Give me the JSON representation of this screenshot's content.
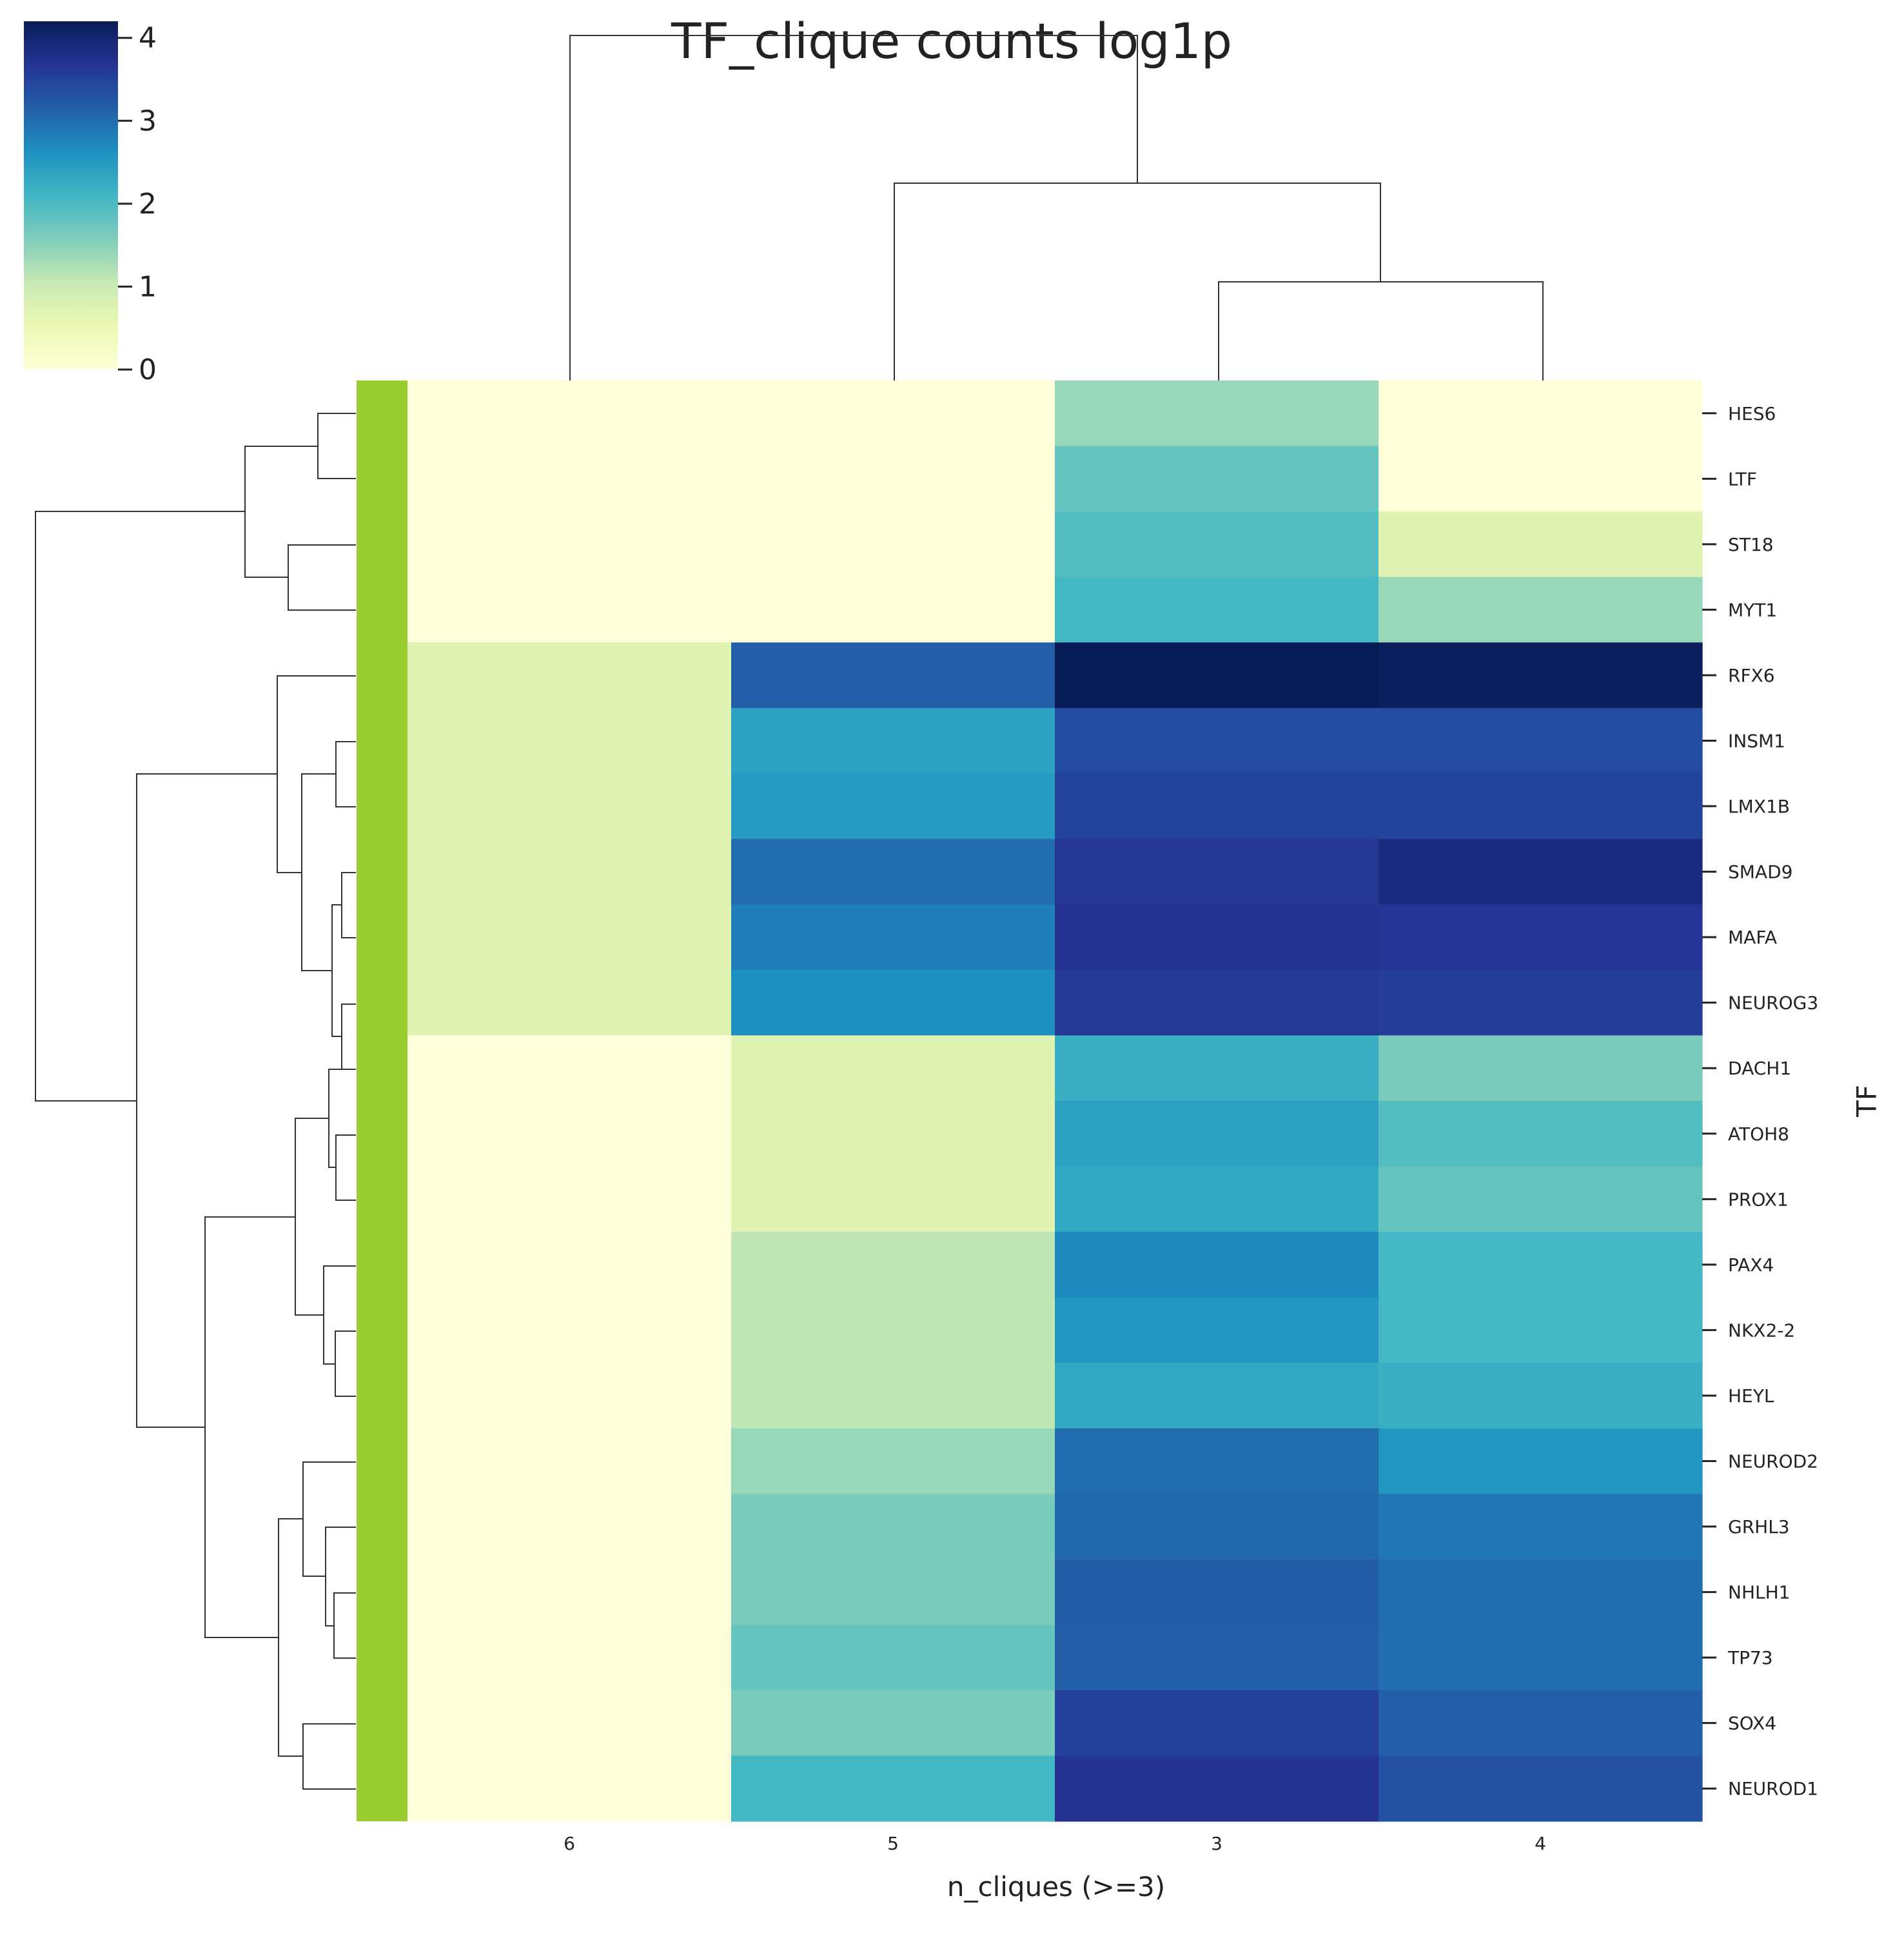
{
  "chart_data": {
    "type": "heatmap",
    "variant": "clustermap",
    "title": "TF_clique counts log1p",
    "xlabel": "n_cliques (>=3)",
    "ylabel": "TF",
    "columns": [
      "6",
      "5",
      "3",
      "4"
    ],
    "rows": [
      "HES6",
      "LTF",
      "ST18",
      "MYT1",
      "RFX6",
      "INSM1",
      "LMX1B",
      "SMAD9",
      "MAFA",
      "NEUROG3",
      "DACH1",
      "ATOH8",
      "PROX1",
      "PAX4",
      "NKX2-2",
      "HEYL",
      "NEUROD2",
      "GRHL3",
      "NHLH1",
      "TP73",
      "SOX4",
      "NEUROD1"
    ],
    "values": [
      [
        0,
        0,
        1.39,
        0
      ],
      [
        0,
        0,
        1.79,
        0
      ],
      [
        0,
        0,
        1.95,
        0.69
      ],
      [
        0,
        0,
        2.08,
        1.39
      ],
      [
        0.69,
        3.14,
        4.2,
        4.15
      ],
      [
        0.69,
        2.4,
        3.37,
        3.37
      ],
      [
        0.69,
        2.48,
        3.47,
        3.47
      ],
      [
        0.69,
        3.0,
        3.64,
        3.85
      ],
      [
        0.69,
        2.83,
        3.69,
        3.66
      ],
      [
        0.69,
        2.64,
        3.61,
        3.56
      ],
      [
        0,
        0.69,
        2.2,
        1.61
      ],
      [
        0,
        0.69,
        2.4,
        1.95
      ],
      [
        0,
        0.69,
        2.3,
        1.79
      ],
      [
        0,
        1.1,
        2.71,
        2.08
      ],
      [
        0,
        1.1,
        2.56,
        2.08
      ],
      [
        0,
        1.1,
        2.3,
        2.2
      ],
      [
        0,
        1.39,
        3.0,
        2.56
      ],
      [
        0,
        1.61,
        3.04,
        2.89
      ],
      [
        0,
        1.61,
        3.18,
        3.0
      ],
      [
        0,
        1.79,
        3.14,
        3.0
      ],
      [
        0,
        1.61,
        3.53,
        3.14
      ],
      [
        0,
        2.08,
        3.69,
        3.3
      ]
    ],
    "colorbar": {
      "min": 0,
      "max": 4.2,
      "ticks": [
        "0",
        "1",
        "2",
        "3",
        "4"
      ],
      "colormap": "YlGnBu"
    },
    "row_colors": "#9acd32",
    "cbar_colorstops": [
      "#ffffd9",
      "#edf8b1",
      "#c7e9b4",
      "#7fcdbb",
      "#41b6c4",
      "#1d91c0",
      "#225ea8",
      "#253494",
      "#081d58"
    ],
    "grid": false,
    "row_dendrogram": "left",
    "col_dendrogram": "top"
  }
}
